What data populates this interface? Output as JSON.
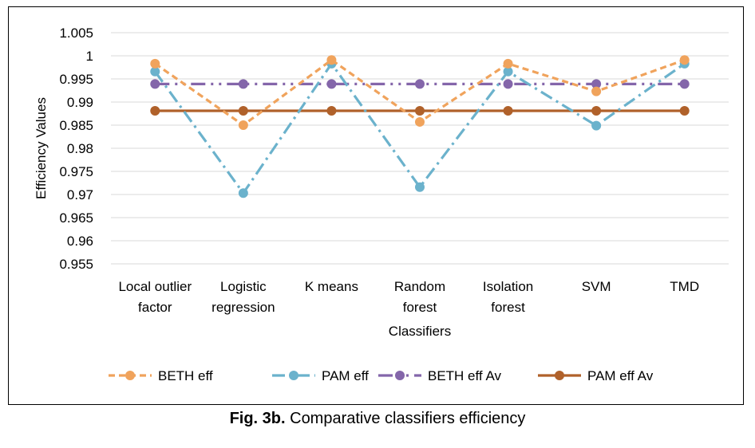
{
  "caption": {
    "label": "Fig. 3b.",
    "text": " Comparative classifiers efficiency"
  },
  "chart_data": {
    "type": "line",
    "xlabel": "Classifiers",
    "ylabel": "Efficiency Values",
    "ylim": [
      0.955,
      1.005
    ],
    "ytick_step": 0.005,
    "yticks": [
      "0.955",
      "0.96",
      "0.965",
      "0.97",
      "0.975",
      "0.98",
      "0.985",
      "0.99",
      "0.995",
      "1",
      "1.005"
    ],
    "grid": true,
    "legend_position": "bottom",
    "categories": [
      [
        "Local outlier",
        "factor"
      ],
      [
        "Logistic",
        "regression"
      ],
      [
        "K means"
      ],
      [
        "Random",
        "forest"
      ],
      [
        "Isolation",
        "forest"
      ],
      [
        "SVM"
      ],
      [
        "TMD"
      ]
    ],
    "series": [
      {
        "name": "BETH eff",
        "color": "#f0a35c",
        "dash": "8,5",
        "values": [
          0.9983,
          0.985,
          0.9991,
          0.9857,
          0.9983,
          0.9923,
          0.9991
        ]
      },
      {
        "name": "PAM eff",
        "color": "#6bb2cc",
        "dash": "16,6,3,6",
        "values": [
          0.9966,
          0.9703,
          0.9983,
          0.9716,
          0.9966,
          0.9849,
          0.9983
        ]
      },
      {
        "name": "BETH eff Av",
        "color": "#8466aa",
        "dash": "18,7,3,7,3,7",
        "values": [
          0.9939,
          0.9939,
          0.9939,
          0.9939,
          0.9939,
          0.9939,
          0.9939
        ]
      },
      {
        "name": "PAM eff Av",
        "color": "#b0612a",
        "dash": "",
        "values": [
          0.9881,
          0.9881,
          0.9881,
          0.9881,
          0.9881,
          0.9881,
          0.9881
        ]
      }
    ]
  }
}
